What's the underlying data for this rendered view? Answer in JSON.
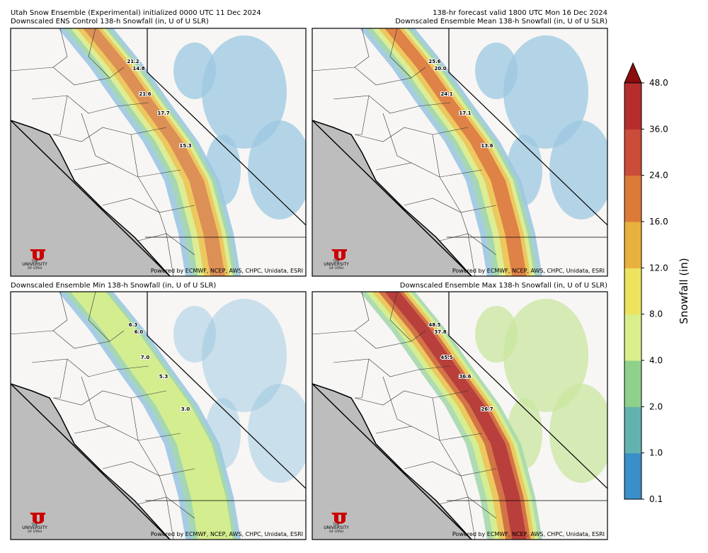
{
  "header": {
    "left": "Utah Snow Ensemble (Experimental) initialized 0000 UTC 11 Dec 2024",
    "right": "138-hr forecast valid 1800 UTC Mon 16 Dec 2024"
  },
  "panels": [
    {
      "title": "Downscaled ENS Control 138-h Snowfall (in, U of U SLR)",
      "point_labels": [
        "21.2",
        "14.8",
        "21.6",
        "17.7",
        "15.3"
      ]
    },
    {
      "title": "Downscaled Ensemble Mean 138-h Snowfall (in, U of U SLR)",
      "point_labels": [
        "25.6",
        "20.0",
        "24.1",
        "17.1",
        "13.6"
      ]
    },
    {
      "title": "Downscaled Ensemble Min 138-h Snowfall (in, U of U SLR)",
      "point_labels": [
        "6.3",
        "6.0",
        "7.0",
        "5.3",
        "3.0"
      ]
    },
    {
      "title": "Downscaled Ensemble Max 138-h Snowfall (in, U of U SLR)",
      "point_labels": [
        "48.5",
        "37.8",
        "45.5",
        "36.6",
        "26.7"
      ]
    }
  ],
  "credit": "Powered by ECMWF, NCEP, AWS, CHPC, Unidata, ESRI",
  "logo": [
    "THE",
    "UNIVERSITY",
    "OF UTAH"
  ],
  "colorbar": {
    "label": "Snowfall (in)",
    "ticks": [
      0.1,
      {
        "value": 1,
        "label": "1.0"
      },
      {
        "value": 2,
        "label": "2.0"
      },
      {
        "value": 4,
        "label": "4.0"
      },
      {
        "value": 8,
        "label": "8.0"
      },
      {
        "value": 12,
        "label": "12.0"
      },
      {
        "value": 16,
        "label": "16.0"
      },
      {
        "value": 24,
        "label": "24.0"
      },
      {
        "value": 36,
        "label": "36.0"
      },
      {
        "value": 48,
        "label": "48.0"
      }
    ],
    "colors": [
      "#3a8fc8",
      "#62b2b0",
      "#8fd08a",
      "#d9ef8b",
      "#ede35e",
      "#e8b03c",
      "#dc7a38",
      "#cc4c3a",
      "#b52d2d"
    ],
    "extend_color": "#8b0d0d"
  }
}
